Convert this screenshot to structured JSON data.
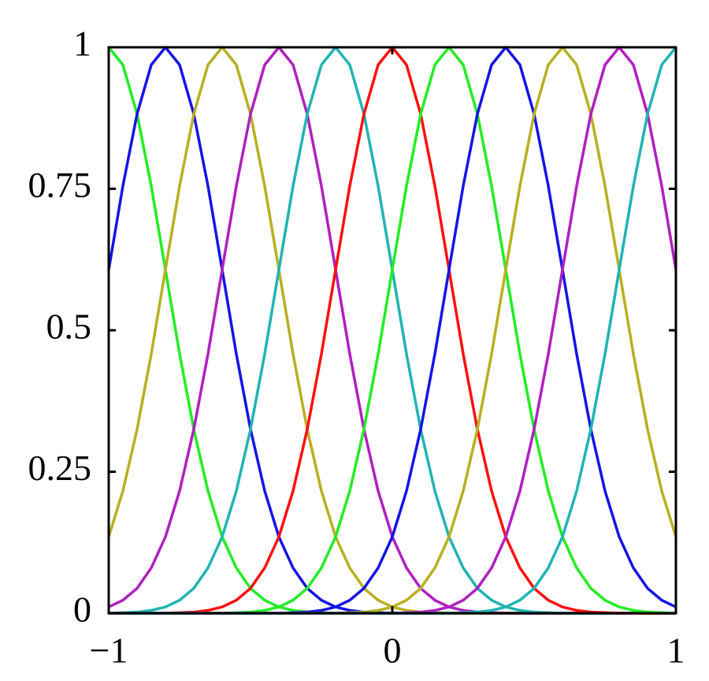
{
  "chart_data": {
    "type": "line",
    "x": [
      -1,
      -0.95,
      -0.9,
      -0.85,
      -0.8,
      -0.75,
      -0.7,
      -0.65,
      -0.6,
      -0.55,
      -0.5,
      -0.45,
      -0.4,
      -0.35,
      -0.3,
      -0.25,
      -0.2,
      -0.15,
      -0.1,
      -0.05,
      0,
      0.05,
      0.1,
      0.15,
      0.2,
      0.25,
      0.3,
      0.35,
      0.4,
      0.45,
      0.5,
      0.55,
      0.6,
      0.65,
      0.7,
      0.75,
      0.8,
      0.85,
      0.9,
      0.95,
      1
    ],
    "series": [
      {
        "color": "#22ee22",
        "values": [
          1,
          0.969,
          0.882,
          0.755,
          0.607,
          0.458,
          0.325,
          0.216,
          0.135,
          0.08,
          0.044,
          0.023,
          0.011,
          0.005,
          0.002,
          0.001,
          0,
          0,
          0,
          0,
          0,
          0,
          0,
          0,
          0,
          0,
          0,
          0,
          0,
          0,
          0,
          0,
          0,
          0,
          0,
          0,
          0,
          0,
          0,
          0,
          0
        ]
      },
      {
        "color": "#1515e6",
        "values": [
          0.607,
          0.755,
          0.882,
          0.969,
          1,
          0.969,
          0.882,
          0.755,
          0.607,
          0.458,
          0.325,
          0.216,
          0.135,
          0.08,
          0.044,
          0.023,
          0.011,
          0.005,
          0.002,
          0.001,
          0,
          0,
          0,
          0,
          0,
          0,
          0,
          0,
          0,
          0,
          0,
          0,
          0,
          0,
          0,
          0,
          0,
          0,
          0,
          0,
          0
        ]
      },
      {
        "color": "#b8b020",
        "values": [
          0.135,
          0.216,
          0.325,
          0.458,
          0.607,
          0.755,
          0.882,
          0.969,
          1,
          0.969,
          0.882,
          0.755,
          0.607,
          0.458,
          0.325,
          0.216,
          0.135,
          0.08,
          0.044,
          0.023,
          0.011,
          0.005,
          0.002,
          0.001,
          0,
          0,
          0,
          0,
          0,
          0,
          0,
          0,
          0,
          0,
          0,
          0,
          0,
          0,
          0,
          0,
          0
        ]
      },
      {
        "color": "#b020c0",
        "values": [
          0.011,
          0.023,
          0.044,
          0.08,
          0.135,
          0.216,
          0.325,
          0.458,
          0.607,
          0.755,
          0.882,
          0.969,
          1,
          0.969,
          0.882,
          0.755,
          0.607,
          0.458,
          0.325,
          0.216,
          0.135,
          0.08,
          0.044,
          0.023,
          0.011,
          0.005,
          0.002,
          0.001,
          0,
          0,
          0,
          0,
          0,
          0,
          0,
          0,
          0,
          0,
          0,
          0,
          0
        ]
      },
      {
        "color": "#20b4b4",
        "values": [
          0,
          0.001,
          0.002,
          0.005,
          0.011,
          0.023,
          0.044,
          0.08,
          0.135,
          0.216,
          0.325,
          0.458,
          0.607,
          0.755,
          0.882,
          0.969,
          1,
          0.969,
          0.882,
          0.755,
          0.607,
          0.458,
          0.325,
          0.216,
          0.135,
          0.08,
          0.044,
          0.023,
          0.011,
          0.005,
          0.002,
          0.001,
          0,
          0,
          0,
          0,
          0,
          0,
          0,
          0,
          0
        ]
      },
      {
        "color": "#ff1010",
        "values": [
          0,
          0,
          0,
          0,
          0,
          0.001,
          0.002,
          0.005,
          0.011,
          0.023,
          0.044,
          0.08,
          0.135,
          0.216,
          0.325,
          0.458,
          0.607,
          0.755,
          0.882,
          0.969,
          1,
          0.969,
          0.882,
          0.755,
          0.607,
          0.458,
          0.325,
          0.216,
          0.135,
          0.08,
          0.044,
          0.023,
          0.011,
          0.005,
          0.002,
          0.001,
          0,
          0,
          0,
          0,
          0
        ]
      },
      {
        "color": "#22ee22",
        "values": [
          0,
          0,
          0,
          0,
          0,
          0,
          0,
          0,
          0,
          0.001,
          0.002,
          0.005,
          0.011,
          0.023,
          0.044,
          0.08,
          0.135,
          0.216,
          0.325,
          0.458,
          0.607,
          0.755,
          0.882,
          0.969,
          1,
          0.969,
          0.882,
          0.755,
          0.607,
          0.458,
          0.325,
          0.216,
          0.135,
          0.08,
          0.044,
          0.023,
          0.011,
          0.005,
          0.002,
          0.001,
          0
        ]
      },
      {
        "color": "#1515e6",
        "values": [
          0,
          0,
          0,
          0,
          0,
          0,
          0,
          0,
          0,
          0,
          0,
          0,
          0,
          0.001,
          0.002,
          0.005,
          0.011,
          0.023,
          0.044,
          0.08,
          0.135,
          0.216,
          0.325,
          0.458,
          0.607,
          0.755,
          0.882,
          0.969,
          1,
          0.969,
          0.882,
          0.755,
          0.607,
          0.458,
          0.325,
          0.216,
          0.135,
          0.08,
          0.044,
          0.023,
          0.011
        ]
      },
      {
        "color": "#b8b020",
        "values": [
          0,
          0,
          0,
          0,
          0,
          0,
          0,
          0,
          0,
          0,
          0,
          0,
          0,
          0,
          0,
          0,
          0,
          0.001,
          0.002,
          0.005,
          0.011,
          0.023,
          0.044,
          0.08,
          0.135,
          0.216,
          0.325,
          0.458,
          0.607,
          0.755,
          0.882,
          0.969,
          1,
          0.969,
          0.882,
          0.755,
          0.607,
          0.458,
          0.325,
          0.216,
          0.135
        ]
      },
      {
        "color": "#b020c0",
        "values": [
          0,
          0,
          0,
          0,
          0,
          0,
          0,
          0,
          0,
          0,
          0,
          0,
          0,
          0,
          0,
          0,
          0,
          0,
          0,
          0,
          0,
          0.001,
          0.002,
          0.005,
          0.011,
          0.023,
          0.044,
          0.08,
          0.135,
          0.216,
          0.325,
          0.458,
          0.607,
          0.755,
          0.882,
          0.969,
          1,
          0.969,
          0.882,
          0.755,
          0.607
        ]
      },
      {
        "color": "#20b4b4",
        "values": [
          0,
          0,
          0,
          0,
          0,
          0,
          0,
          0,
          0,
          0,
          0,
          0,
          0,
          0,
          0,
          0,
          0,
          0,
          0,
          0,
          0,
          0,
          0,
          0,
          0,
          0.001,
          0.002,
          0.005,
          0.011,
          0.023,
          0.044,
          0.08,
          0.135,
          0.216,
          0.325,
          0.458,
          0.607,
          0.755,
          0.882,
          0.969,
          1
        ]
      }
    ],
    "xlim": [
      -1,
      1
    ],
    "ylim": [
      0,
      1
    ],
    "xticks": [
      {
        "value": -1,
        "label": "−1"
      },
      0,
      1
    ],
    "yticks": [
      0,
      0.25,
      0.5,
      0.75,
      1
    ]
  }
}
